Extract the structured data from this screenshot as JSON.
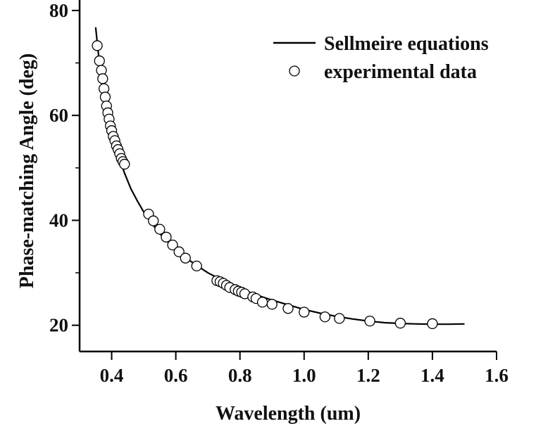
{
  "chart_data": {
    "type": "scatter",
    "title": "",
    "xlabel": "Wavelength (um)",
    "ylabel": "Phase-matching Angle (deg)",
    "xlim": [
      0.3,
      1.6
    ],
    "ylim": [
      15,
      82
    ],
    "x_ticks": [
      0.4,
      0.6,
      0.8,
      1.0,
      1.2,
      1.4,
      1.6
    ],
    "x_tick_labels": [
      "0.4",
      "0.6",
      "0.8",
      "1.0",
      "1.2",
      "1.4",
      "1.6"
    ],
    "y_ticks": [
      20,
      40,
      60,
      80
    ],
    "y_tick_labels": [
      "20",
      "40",
      "60",
      "80"
    ],
    "grid": false,
    "legend_position": "top-right",
    "series": [
      {
        "name": "Sellmeire equations",
        "style": "line",
        "color": "#000000",
        "x": [
          0.35,
          0.36,
          0.37,
          0.38,
          0.39,
          0.4,
          0.42,
          0.44,
          0.46,
          0.48,
          0.5,
          0.52,
          0.55,
          0.58,
          0.62,
          0.66,
          0.7,
          0.75,
          0.8,
          0.85,
          0.9,
          0.95,
          1.0,
          1.05,
          1.1,
          1.15,
          1.2,
          1.25,
          1.3,
          1.35,
          1.4,
          1.45,
          1.5
        ],
        "y": [
          76.8,
          71.0,
          66.5,
          62.7,
          59.5,
          56.8,
          52.5,
          49.0,
          46.0,
          43.7,
          41.6,
          39.8,
          37.5,
          35.6,
          33.4,
          31.6,
          30.0,
          28.4,
          27.0,
          25.8,
          24.8,
          23.9,
          23.0,
          22.3,
          21.7,
          21.2,
          20.8,
          20.5,
          20.35,
          20.25,
          20.2,
          20.2,
          20.25
        ]
      },
      {
        "name": "experimental data",
        "style": "markers",
        "marker": "open-circle",
        "x": [
          0.355,
          0.362,
          0.368,
          0.372,
          0.376,
          0.38,
          0.384,
          0.388,
          0.392,
          0.396,
          0.4,
          0.405,
          0.41,
          0.415,
          0.42,
          0.425,
          0.43,
          0.435,
          0.44,
          0.515,
          0.53,
          0.55,
          0.57,
          0.59,
          0.61,
          0.63,
          0.665,
          0.728,
          0.738,
          0.748,
          0.758,
          0.768,
          0.785,
          0.795,
          0.805,
          0.815,
          0.84,
          0.85,
          0.87,
          0.9,
          0.95,
          1.0,
          1.065,
          1.11,
          1.205,
          1.3,
          1.4
        ],
        "y": [
          73.3,
          70.4,
          68.6,
          67.0,
          65.1,
          63.5,
          61.8,
          60.5,
          59.3,
          58.0,
          57.1,
          56.0,
          55.2,
          54.2,
          53.5,
          52.7,
          51.8,
          51.2,
          50.7,
          41.2,
          39.9,
          38.3,
          36.8,
          35.3,
          34.0,
          32.8,
          31.3,
          28.5,
          28.3,
          28.0,
          27.6,
          27.2,
          26.8,
          26.5,
          26.3,
          26.0,
          25.4,
          25.1,
          24.4,
          24.0,
          23.2,
          22.5,
          21.6,
          21.3,
          20.8,
          20.4,
          20.3
        ]
      }
    ]
  }
}
